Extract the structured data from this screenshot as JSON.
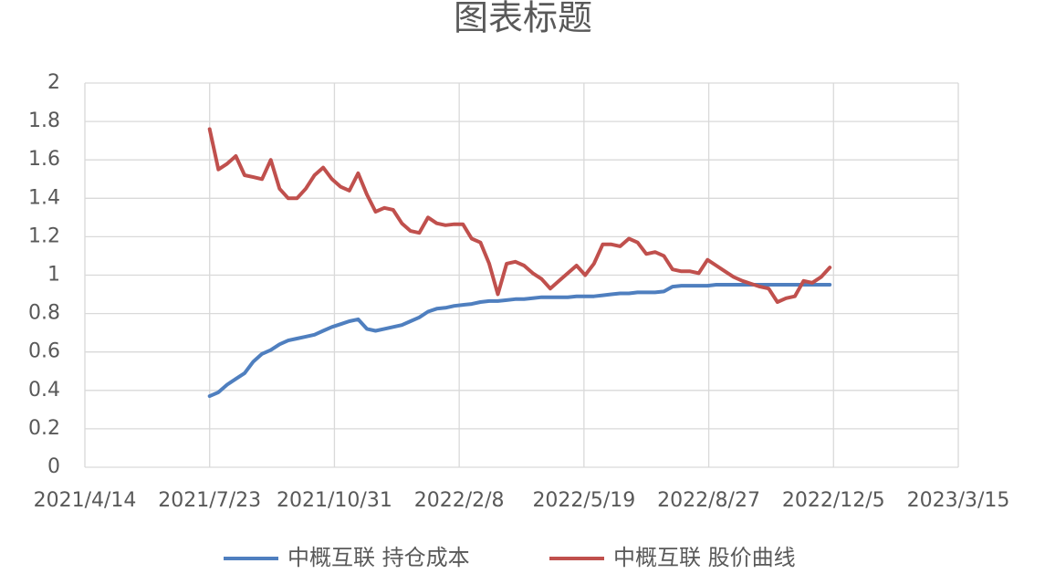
{
  "chart_data": {
    "type": "line",
    "title": "图表标题",
    "x": [
      "2021/7/23",
      "2021/7/30",
      "2021/8/6",
      "2021/8/13",
      "2021/8/20",
      "2021/8/27",
      "2021/9/3",
      "2021/9/10",
      "2021/9/17",
      "2021/9/24",
      "2021/10/1",
      "2021/10/8",
      "2021/10/15",
      "2021/10/22",
      "2021/10/29",
      "2021/11/5",
      "2021/11/12",
      "2021/11/19",
      "2021/11/26",
      "2021/12/3",
      "2021/12/10",
      "2021/12/17",
      "2021/12/24",
      "2021/12/31",
      "2022/1/7",
      "2022/1/14",
      "2022/1/21",
      "2022/1/28",
      "2022/2/4",
      "2022/2/11",
      "2022/2/18",
      "2022/2/25",
      "2022/3/4",
      "2022/3/11",
      "2022/3/18",
      "2022/3/25",
      "2022/4/1",
      "2022/4/8",
      "2022/4/15",
      "2022/4/22",
      "2022/4/29",
      "2022/5/6",
      "2022/5/13",
      "2022/5/20",
      "2022/5/27",
      "2022/6/3",
      "2022/6/10",
      "2022/6/17",
      "2022/6/24",
      "2022/7/1",
      "2022/7/8",
      "2022/7/15",
      "2022/7/22",
      "2022/7/29",
      "2022/8/5",
      "2022/8/12",
      "2022/8/19",
      "2022/8/26",
      "2022/9/2",
      "2022/9/9",
      "2022/9/16",
      "2022/9/23",
      "2022/9/30",
      "2022/10/7",
      "2022/10/14",
      "2022/10/21",
      "2022/10/28",
      "2022/11/4",
      "2022/11/11",
      "2022/11/18",
      "2022/11/25",
      "2022/12/2"
    ],
    "series": [
      {
        "name": "中概互联 持仓成本",
        "color": "#4f7fbf",
        "values": [
          0.37,
          0.39,
          0.43,
          0.46,
          0.49,
          0.55,
          0.59,
          0.61,
          0.64,
          0.66,
          0.67,
          0.68,
          0.69,
          0.71,
          0.73,
          0.745,
          0.76,
          0.77,
          0.72,
          0.71,
          0.72,
          0.73,
          0.74,
          0.76,
          0.78,
          0.81,
          0.825,
          0.83,
          0.84,
          0.845,
          0.85,
          0.86,
          0.865,
          0.865,
          0.87,
          0.875,
          0.875,
          0.88,
          0.885,
          0.885,
          0.885,
          0.885,
          0.89,
          0.89,
          0.89,
          0.895,
          0.9,
          0.905,
          0.905,
          0.91,
          0.91,
          0.91,
          0.915,
          0.94,
          0.945,
          0.945,
          0.945,
          0.945,
          0.95,
          0.95,
          0.95,
          0.95,
          0.95,
          0.95,
          0.95,
          0.95,
          0.95,
          0.95,
          0.95,
          0.95,
          0.95,
          0.95
        ]
      },
      {
        "name": "中概互联 股价曲线",
        "color": "#c0504d",
        "values": [
          1.76,
          1.55,
          1.58,
          1.62,
          1.52,
          1.51,
          1.5,
          1.6,
          1.45,
          1.4,
          1.4,
          1.45,
          1.52,
          1.56,
          1.5,
          1.46,
          1.44,
          1.53,
          1.42,
          1.33,
          1.35,
          1.34,
          1.27,
          1.23,
          1.22,
          1.3,
          1.27,
          1.26,
          1.265,
          1.265,
          1.19,
          1.17,
          1.06,
          0.9,
          1.06,
          1.07,
          1.05,
          1.01,
          0.98,
          0.93,
          0.97,
          1.01,
          1.05,
          1.0,
          1.06,
          1.16,
          1.16,
          1.15,
          1.19,
          1.17,
          1.11,
          1.12,
          1.1,
          1.03,
          1.02,
          1.02,
          1.01,
          1.08,
          1.05,
          1.02,
          0.99,
          0.97,
          0.955,
          0.94,
          0.93,
          0.86,
          0.88,
          0.89,
          0.97,
          0.96,
          0.99,
          1.04
        ]
      }
    ],
    "xlim": [
      "2021/4/14",
      "2023/3/15"
    ],
    "xticks": [
      "2021/4/14",
      "2021/7/23",
      "2021/10/31",
      "2022/2/8",
      "2022/5/19",
      "2022/8/27",
      "2022/12/5",
      "2023/3/15"
    ],
    "ylim": [
      0,
      2
    ],
    "yticks": [
      0,
      0.2,
      0.4,
      0.6,
      0.8,
      1,
      1.2,
      1.4,
      1.6,
      1.8,
      2
    ],
    "grid": true,
    "legend": "bottom"
  }
}
